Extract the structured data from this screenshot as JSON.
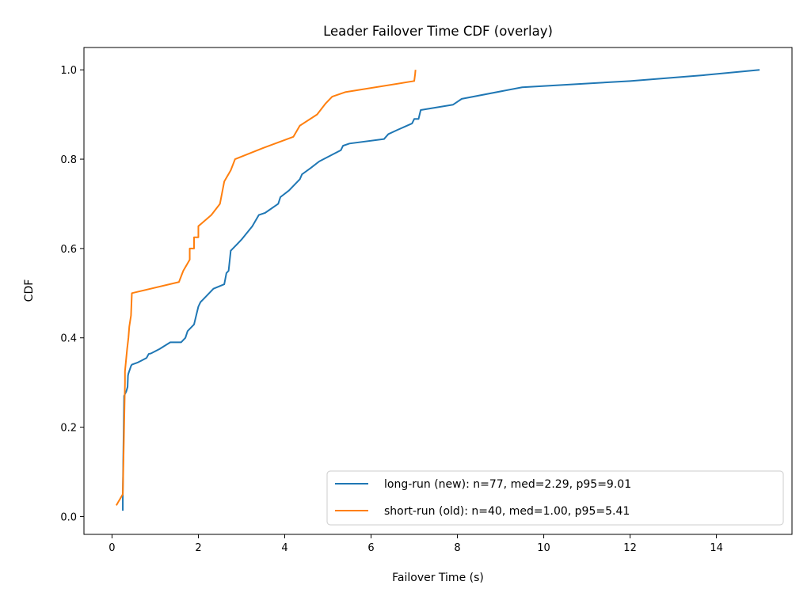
{
  "chart_data": {
    "type": "line",
    "title": "Leader Failover Time CDF (overlay)",
    "xlabel": "Failover Time (s)",
    "ylabel": "CDF",
    "xlim": [
      -0.65,
      15.75
    ],
    "ylim": [
      -0.04,
      1.05
    ],
    "xticks": [
      0,
      2,
      4,
      6,
      8,
      10,
      12,
      14
    ],
    "yticks": [
      0.0,
      0.2,
      0.4,
      0.6,
      0.8,
      1.0
    ],
    "grid": false,
    "legend_position": "lower-right",
    "series": [
      {
        "name": "long-run (new): n=77, med=2.29, p95=9.01",
        "color": "#1f77b4",
        "x": [
          0.25,
          0.25,
          0.28,
          0.33,
          0.36,
          0.37,
          0.38,
          0.44,
          0.46,
          0.6,
          0.7,
          0.8,
          0.85,
          0.9,
          1.1,
          1.35,
          1.6,
          1.7,
          1.75,
          1.8,
          1.9,
          1.95,
          2.0,
          2.05,
          2.2,
          2.35,
          2.6,
          2.65,
          2.7,
          2.75,
          2.9,
          3.0,
          3.25,
          3.4,
          3.55,
          3.85,
          3.9,
          4.1,
          4.25,
          4.35,
          4.4,
          4.6,
          4.8,
          5.1,
          5.3,
          5.35,
          5.5,
          6.3,
          6.4,
          6.6,
          6.95,
          7.0,
          7.1,
          7.15,
          7.9,
          8.1,
          9.5,
          12.0,
          13.7,
          15.0
        ],
        "y": [
          0.013,
          0.05,
          0.27,
          0.28,
          0.29,
          0.315,
          0.32,
          0.337,
          0.34,
          0.345,
          0.35,
          0.355,
          0.364,
          0.365,
          0.375,
          0.39,
          0.39,
          0.4,
          0.415,
          0.42,
          0.43,
          0.45,
          0.47,
          0.48,
          0.495,
          0.51,
          0.52,
          0.545,
          0.55,
          0.595,
          0.61,
          0.62,
          0.65,
          0.675,
          0.68,
          0.7,
          0.715,
          0.73,
          0.745,
          0.755,
          0.766,
          0.78,
          0.795,
          0.81,
          0.82,
          0.83,
          0.835,
          0.845,
          0.856,
          0.865,
          0.88,
          0.89,
          0.89,
          0.91,
          0.922,
          0.935,
          0.961,
          0.975,
          0.988,
          1.0
        ]
      },
      {
        "name": "short-run (old): n=40, med=1.00, p95=5.41",
        "color": "#ff7f0e",
        "x": [
          0.1,
          0.25,
          0.3,
          0.3,
          0.35,
          0.38,
          0.4,
          0.44,
          0.45,
          0.46,
          1.55,
          1.65,
          1.8,
          1.8,
          1.9,
          1.9,
          2.0,
          2.0,
          2.3,
          2.5,
          2.6,
          2.75,
          2.85,
          3.5,
          4.2,
          4.35,
          4.75,
          4.95,
          5.1,
          5.4,
          7.0,
          7.02,
          7.03
        ],
        "y": [
          0.025,
          0.05,
          0.3,
          0.325,
          0.375,
          0.4,
          0.425,
          0.45,
          0.475,
          0.5,
          0.525,
          0.55,
          0.575,
          0.6,
          0.6,
          0.625,
          0.625,
          0.65,
          0.675,
          0.7,
          0.75,
          0.775,
          0.8,
          0.825,
          0.85,
          0.875,
          0.9,
          0.925,
          0.94,
          0.95,
          0.975,
          0.99,
          1.0
        ]
      }
    ]
  }
}
